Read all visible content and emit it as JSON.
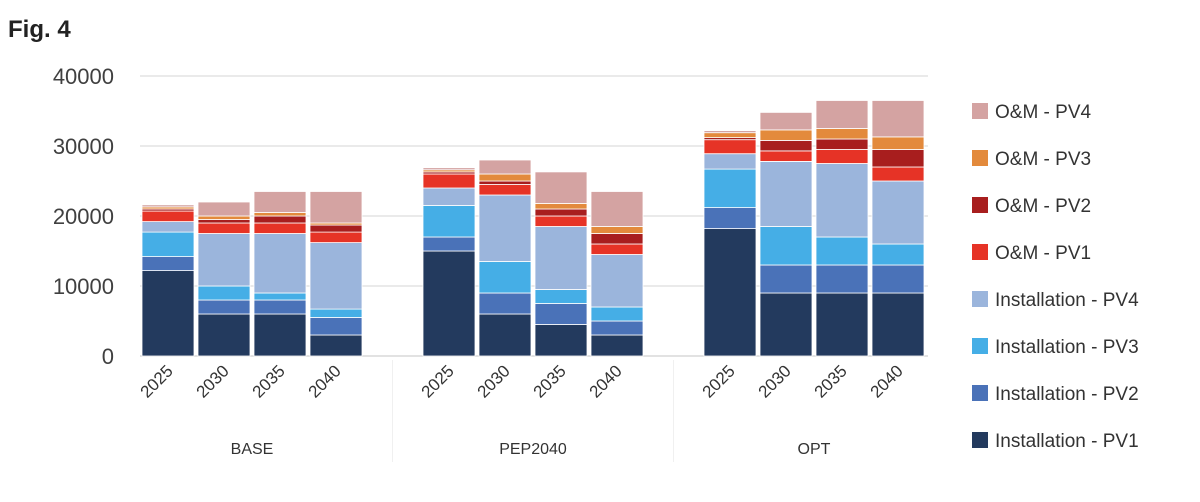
{
  "figure_label": "Fig. 4",
  "chart_data": {
    "type": "bar",
    "stacked": true,
    "title": "",
    "xlabel": "",
    "ylabel": "",
    "ylim": [
      0,
      40000
    ],
    "yticks": [
      0,
      10000,
      20000,
      30000,
      40000
    ],
    "grid": true,
    "legend_position": "right",
    "groups": [
      {
        "name": "BASE",
        "categories": [
          "2025",
          "2030",
          "2035",
          "2040"
        ]
      },
      {
        "name": "PEP2040",
        "categories": [
          "2025",
          "2030",
          "2035",
          "2040"
        ]
      },
      {
        "name": "OPT",
        "categories": [
          "2025",
          "2030",
          "2035",
          "2040"
        ]
      }
    ],
    "series": [
      {
        "name": "Installation - PV1",
        "color": "#233a5e",
        "values": [
          12200,
          6000,
          6000,
          3000,
          15000,
          6000,
          4500,
          3000,
          18200,
          9000,
          9000,
          9000
        ]
      },
      {
        "name": "Installation - PV2",
        "color": "#4a72b8",
        "values": [
          2000,
          2000,
          2000,
          2500,
          2000,
          3000,
          3000,
          2000,
          3000,
          4000,
          4000,
          4000
        ]
      },
      {
        "name": "Installation - PV3",
        "color": "#45aee6",
        "values": [
          3500,
          2000,
          1000,
          1200,
          4500,
          4500,
          2000,
          2000,
          5500,
          5500,
          4000,
          3000
        ]
      },
      {
        "name": "Installation - PV4",
        "color": "#9bb5dc",
        "values": [
          1500,
          7500,
          8500,
          9500,
          2500,
          9500,
          9000,
          7500,
          2200,
          9300,
          10500,
          9000
        ]
      },
      {
        "name": "O&M - PV1",
        "color": "#e63326",
        "values": [
          1500,
          1500,
          1500,
          1500,
          2000,
          1500,
          1500,
          1500,
          2000,
          1500,
          2000,
          2000
        ]
      },
      {
        "name": "O&M - PV2",
        "color": "#a81e1e",
        "values": [
          300,
          500,
          1000,
          1000,
          300,
          500,
          1000,
          1500,
          300,
          1500,
          1500,
          2500
        ]
      },
      {
        "name": "O&M - PV3",
        "color": "#e38a3c",
        "values": [
          300,
          500,
          500,
          300,
          300,
          1000,
          800,
          1000,
          700,
          1500,
          1500,
          1800
        ]
      },
      {
        "name": "O&M - PV4",
        "color": "#d4a3a2",
        "values": [
          300,
          2000,
          3000,
          4500,
          300,
          2000,
          4500,
          5000,
          300,
          2500,
          4000,
          5200
        ]
      }
    ]
  }
}
